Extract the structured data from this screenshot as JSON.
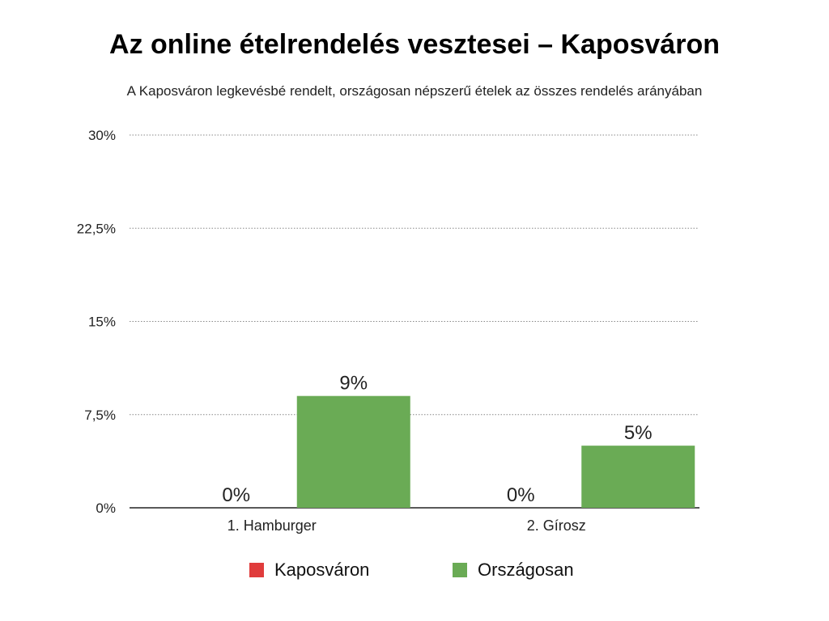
{
  "chart_data": {
    "type": "bar",
    "title": "Az online ételrendelés vesztesei – Kaposváron",
    "subtitle": "A Kaposváron legkevésbé rendelt, országosan népszerű ételek az összes rendelés arányában",
    "categories": [
      "1. Hamburger",
      "2. Gírosz"
    ],
    "series": [
      {
        "name": "Kaposváron",
        "values": [
          0,
          0
        ],
        "labels": [
          "0%",
          "0%"
        ],
        "color": "#e03c3c"
      },
      {
        "name": "Országosan",
        "values": [
          9,
          5
        ],
        "labels": [
          "9%",
          "5%"
        ],
        "color": "#6aab55"
      }
    ],
    "ylim": [
      0,
      30
    ],
    "yticks": [
      0,
      7.5,
      15,
      22.5,
      30
    ],
    "ytick_labels": [
      "0%",
      "7,5%",
      "15%",
      "22,5%",
      "30%"
    ],
    "grid": true,
    "legend_placement": "bottom"
  }
}
